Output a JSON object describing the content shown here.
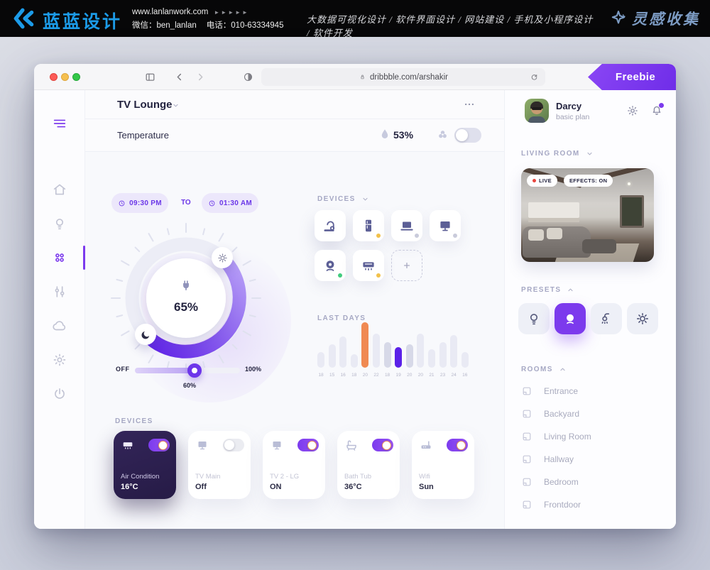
{
  "colors": {
    "accent": "#7C3AED",
    "accent_deep": "#5B21E8",
    "orange": "#F08A52",
    "dark_card": "#2E2255",
    "banner_blue": "#1C9BE8"
  },
  "banner": {
    "logo_text": "蓝蓝设计",
    "website": "www.lanlanwork.com",
    "arrows": "►►►►►",
    "wechat": "微信：ben_lanlan",
    "phone": "电话：010-63334945",
    "services": "大数据可视化设计 / 软件界面设计 / 网站建设 / 手机及小程序设计 / 软件开发",
    "brand": "灵感收集"
  },
  "browser": {
    "url": "dribbble.com/arshakir",
    "ribbon": "Freebie"
  },
  "sidebar": {
    "items": [
      {
        "name": "menu",
        "icon": "menu-icon",
        "accent": true
      },
      {
        "name": "home",
        "icon": "home-icon"
      },
      {
        "name": "lights",
        "icon": "bulb-icon"
      },
      {
        "name": "dashboard",
        "icon": "dashboard-icon",
        "active": true
      },
      {
        "name": "controls",
        "icon": "sliders-icon"
      },
      {
        "name": "cloud",
        "icon": "cloud-icon"
      },
      {
        "name": "settings",
        "icon": "gear-icon"
      },
      {
        "name": "power",
        "icon": "power-icon"
      }
    ]
  },
  "header": {
    "room": "TV Lounge",
    "section": "Temperature",
    "humidity": "53%"
  },
  "schedule": {
    "start": "09:30 PM",
    "to": "TO",
    "end": "01:30 AM"
  },
  "dial": {
    "value": "65%"
  },
  "slider": {
    "min": "OFF",
    "max": "100%",
    "value": "60%",
    "percent": 57
  },
  "devices_panel": {
    "label": "DEVICES",
    "tiles": [
      {
        "name": "vacuum",
        "icon": "vacuum-icon",
        "featured": true
      },
      {
        "name": "fridge",
        "icon": "fridge-icon",
        "status": "#F2C14B"
      },
      {
        "name": "laptop",
        "icon": "laptop-icon",
        "status": "#C9CBDB"
      },
      {
        "name": "monitor",
        "icon": "monitor-icon",
        "status": "#C9CBDB"
      },
      {
        "name": "camera",
        "icon": "webcam-icon",
        "status": "#41CC7E"
      },
      {
        "name": "air-conditioner",
        "icon": "ac-icon",
        "status": "#F2C14B"
      },
      {
        "name": "add-device",
        "icon": "plus-icon",
        "add": true
      }
    ]
  },
  "chart_data": {
    "type": "bar",
    "title": "LAST DAYS",
    "categories": [
      "18",
      "15",
      "16",
      "18",
      "20",
      "22",
      "18",
      "19",
      "20",
      "20",
      "21",
      "23",
      "24",
      "16"
    ],
    "values": [
      34,
      52,
      68,
      30,
      100,
      75,
      56,
      46,
      52,
      75,
      40,
      56,
      72,
      34
    ],
    "value_scale": "relative bar height percent, y-axis unlabeled",
    "colors": [
      "default",
      "default",
      "default",
      "default",
      "orange",
      "default",
      "muted",
      "purple",
      "muted",
      "default",
      "default",
      "default",
      "default",
      "default"
    ],
    "palette": {
      "default": "#E9EAF4",
      "muted": "#D7D9E8",
      "orange": "#F08A52",
      "purple": "#5B21E8"
    },
    "xlabel": "",
    "ylabel": "",
    "legend": false,
    "grid": false
  },
  "devices_cards": {
    "label": "DEVICES",
    "cards": [
      {
        "name": "Air Condition",
        "value": "16°C",
        "icon": "ac-icon",
        "on": true,
        "dark": true
      },
      {
        "name": "TV Main",
        "value": "Off",
        "icon": "tv-icon",
        "on": false
      },
      {
        "name": "TV 2 - LG",
        "value": "ON",
        "icon": "tv-icon",
        "on": true
      },
      {
        "name": "Bath Tub",
        "value": "36°C",
        "icon": "bathtub-icon",
        "on": true
      },
      {
        "name": "Wifi",
        "value": "Sun",
        "icon": "router-icon",
        "on": true
      }
    ]
  },
  "panel": {
    "user": {
      "name": "Darcy",
      "plan": "basic plan"
    },
    "room_selector": "LIVING ROOM",
    "camera": {
      "live": "LIVE",
      "effects": "EFFECTS: ON"
    },
    "presets": {
      "label": "PRESETS",
      "items": [
        {
          "name": "lamp",
          "icon": "bulb-icon"
        },
        {
          "name": "camera",
          "icon": "webcam-icon",
          "active": true
        },
        {
          "name": "shower",
          "icon": "shower-icon"
        },
        {
          "name": "daylight",
          "icon": "sun-icon"
        }
      ]
    },
    "rooms": {
      "label": "ROOMS",
      "items": [
        {
          "label": "Entrance",
          "icon": "room-icon"
        },
        {
          "label": "Backyard",
          "icon": "room-icon"
        },
        {
          "label": "Living Room",
          "icon": "room-icon"
        },
        {
          "label": "Hallway",
          "icon": "room-icon"
        },
        {
          "label": "Bedroom",
          "icon": "room-icon"
        },
        {
          "label": "Frontdoor",
          "icon": "room-icon"
        }
      ]
    }
  }
}
